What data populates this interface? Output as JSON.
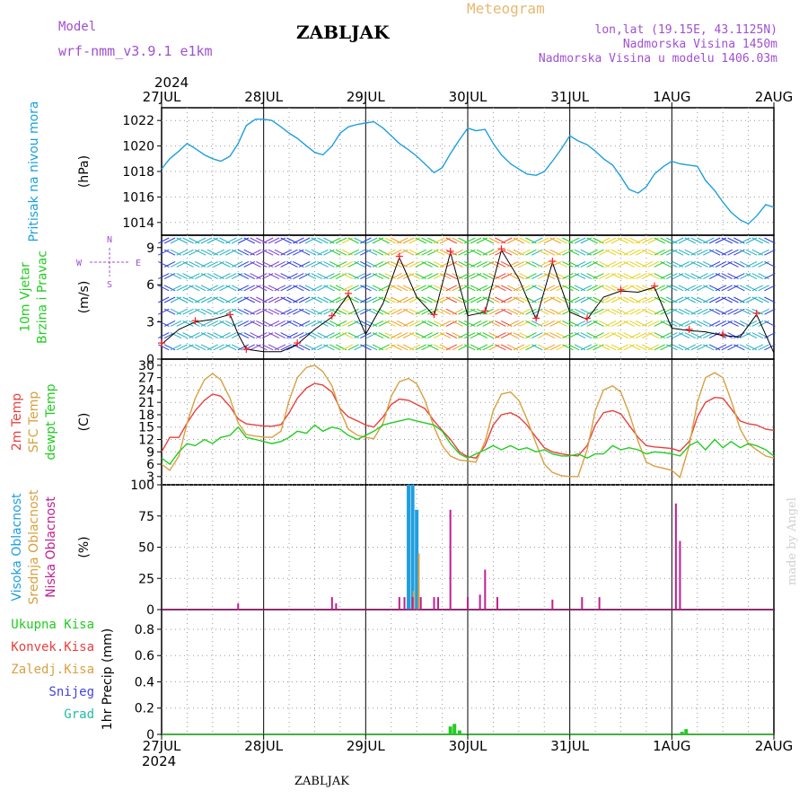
{
  "header": {
    "model_label": "Model",
    "model_name": "wrf-nmm_v3.9.1 e1km",
    "station": "ZABLJAK",
    "product": "Meteogram",
    "coords": "lon,lat (19.15E, 43.1125N)",
    "elevation": "Nadmorska Visina 1450m",
    "model_elevation": "Nadmorska Visina u modelu 1406.03m",
    "year_top": "2024",
    "year_bottom": "2024",
    "footer_station": "ZABLJAK",
    "credit": "made by Angel"
  },
  "colors": {
    "pressure": "#1ea0dc",
    "temp2m": "#e8403c",
    "sfc_temp": "#d8a040",
    "dewpoint": "#22cc22",
    "cloud_high": "#1e9ee0",
    "cloud_mid": "#d8a040",
    "cloud_low": "#c02090",
    "precip_total": "#22cc22",
    "wind_line": "#000000",
    "gust_marker": "#ff2020"
  },
  "x_axis": {
    "day_labels": [
      "27JUL",
      "28JUL",
      "29JUL",
      "30JUL",
      "31JUL",
      "1AUG",
      "2AUG"
    ],
    "range_days": [
      0,
      6
    ]
  },
  "chart_data": [
    {
      "type": "line",
      "panel": "pressure",
      "ylabel_lines": [
        "Pritisak na nivou mora"
      ],
      "unit": "(hPa)",
      "yticks": [
        1014,
        1016,
        1018,
        1020,
        1022
      ],
      "ylim": [
        1013,
        1023
      ],
      "series": [
        {
          "key": "pressure",
          "x": [
            0,
            0.08,
            0.17,
            0.25,
            0.33,
            0.42,
            0.5,
            0.58,
            0.67,
            0.75,
            0.83,
            0.92,
            1.0,
            1.08,
            1.17,
            1.25,
            1.33,
            1.42,
            1.5,
            1.58,
            1.67,
            1.75,
            1.83,
            1.92,
            2.0,
            2.08,
            2.17,
            2.25,
            2.33,
            2.42,
            2.5,
            2.58,
            2.67,
            2.75,
            2.83,
            2.92,
            3.0,
            3.08,
            3.17,
            3.25,
            3.33,
            3.42,
            3.5,
            3.58,
            3.67,
            3.75,
            3.83,
            3.92,
            4.0,
            4.08,
            4.17,
            4.25,
            4.33,
            4.42,
            4.5,
            4.58,
            4.67,
            4.75,
            4.83,
            4.92,
            5.0,
            5.08,
            5.17,
            5.25,
            5.33,
            5.42,
            5.5,
            5.58,
            5.67,
            5.75,
            5.83,
            5.92,
            6.0
          ],
          "y": [
            1018.2,
            1019.0,
            1019.6,
            1020.2,
            1019.8,
            1019.3,
            1019.0,
            1018.8,
            1019.2,
            1020.2,
            1021.6,
            1022.1,
            1022.1,
            1022.0,
            1021.5,
            1021.0,
            1020.6,
            1020.0,
            1019.5,
            1019.3,
            1020.0,
            1021.0,
            1021.5,
            1021.7,
            1021.8,
            1021.9,
            1021.4,
            1020.8,
            1020.2,
            1019.7,
            1019.2,
            1018.6,
            1017.9,
            1018.3,
            1019.4,
            1020.5,
            1021.4,
            1021.2,
            1021.3,
            1020.2,
            1019.3,
            1018.6,
            1018.2,
            1017.8,
            1017.7,
            1018.0,
            1018.8,
            1019.8,
            1020.8,
            1020.4,
            1020.1,
            1019.6,
            1019.0,
            1018.5,
            1017.6,
            1016.6,
            1016.3,
            1016.8,
            1017.8,
            1018.4,
            1018.8,
            1018.6,
            1018.5,
            1018.4,
            1017.3,
            1016.5,
            1015.6,
            1014.8,
            1014.2,
            1013.9,
            1014.5,
            1015.4,
            1015.2
          ]
        }
      ]
    },
    {
      "type": "line",
      "panel": "wind",
      "ylabel_lines": [
        "10m Vjetar",
        "Brzina i Pravac"
      ],
      "unit": "(m/s)",
      "compass": [
        "N",
        "E",
        "S",
        "W"
      ],
      "yticks": [
        0,
        3,
        6,
        9
      ],
      "ylim": [
        0,
        10
      ],
      "series": [
        {
          "key": "wind_line",
          "x": [
            0,
            0.17,
            0.33,
            0.5,
            0.67,
            0.75,
            0.83,
            1.0,
            1.17,
            1.33,
            1.5,
            1.67,
            1.83,
            2.0,
            2.17,
            2.33,
            2.5,
            2.67,
            2.83,
            3.0,
            3.17,
            3.33,
            3.5,
            3.67,
            3.83,
            4.0,
            4.17,
            4.33,
            4.5,
            4.67,
            4.83,
            5.0,
            5.17,
            5.33,
            5.5,
            5.67,
            5.83,
            6.0
          ],
          "y": [
            1.2,
            2.4,
            3.0,
            3.2,
            3.6,
            2.0,
            0.8,
            0.6,
            0.6,
            1.2,
            2.4,
            3.4,
            5.2,
            2.0,
            4.5,
            8.2,
            5.0,
            3.5,
            8.6,
            3.5,
            3.8,
            8.8,
            6.5,
            3.2,
            7.8,
            3.8,
            3.2,
            5.0,
            5.5,
            5.4,
            5.8,
            2.5,
            2.3,
            2.2,
            1.9,
            1.8,
            3.6,
            0.5
          ]
        },
        {
          "key": "gust_marker",
          "x": [
            0,
            0.33,
            0.67,
            0.83,
            1.33,
            1.67,
            1.83,
            2.33,
            2.67,
            2.83,
            3.17,
            3.33,
            3.67,
            3.83,
            4.17,
            4.5,
            4.83,
            5.17,
            5.5,
            5.83
          ],
          "y": [
            1.3,
            3.1,
            3.6,
            0.8,
            1.3,
            3.5,
            5.3,
            8.3,
            3.6,
            8.7,
            3.9,
            8.9,
            3.3,
            7.9,
            3.3,
            5.6,
            5.9,
            2.4,
            2.0,
            3.7
          ]
        }
      ]
    },
    {
      "type": "line",
      "panel": "temperature",
      "ylabel_lines": [
        "2m Temp",
        "SFC Temp",
        "dewpt Temp"
      ],
      "unit": "(C)",
      "yticks": [
        3,
        6,
        9,
        12,
        15,
        18,
        21,
        24,
        27,
        30
      ],
      "ylim": [
        1,
        31.5
      ],
      "series": [
        {
          "key": "temp2m",
          "x": [
            0,
            0.08,
            0.17,
            0.25,
            0.33,
            0.42,
            0.5,
            0.58,
            0.67,
            0.75,
            0.83,
            0.92,
            1.0,
            1.08,
            1.17,
            1.25,
            1.33,
            1.42,
            1.5,
            1.58,
            1.67,
            1.75,
            1.83,
            1.92,
            2.0,
            2.08,
            2.17,
            2.25,
            2.33,
            2.42,
            2.5,
            2.58,
            2.67,
            2.75,
            2.83,
            2.92,
            3.0,
            3.08,
            3.17,
            3.25,
            3.33,
            3.42,
            3.5,
            3.58,
            3.67,
            3.75,
            3.83,
            3.92,
            4.0,
            4.08,
            4.17,
            4.25,
            4.33,
            4.42,
            4.5,
            4.58,
            4.67,
            4.75,
            4.83,
            4.92,
            5.0,
            5.08,
            5.17,
            5.25,
            5.33,
            5.42,
            5.5,
            5.58,
            5.67,
            5.75,
            5.83,
            5.92,
            6.0
          ],
          "y": [
            9,
            12.5,
            12.5,
            16,
            19,
            21.5,
            23,
            22.5,
            20,
            17,
            15.8,
            15.5,
            15.3,
            15.2,
            15.6,
            18.5,
            22,
            24.5,
            25.6,
            25.2,
            23.5,
            19.5,
            17.5,
            16.5,
            15.5,
            15.0,
            17.5,
            20.5,
            21.8,
            21.5,
            20.5,
            19.5,
            16.5,
            14.2,
            12.0,
            9.0,
            7.8,
            7.5,
            10.5,
            15.5,
            18.0,
            18.5,
            17.5,
            15.5,
            12.5,
            10.0,
            9.0,
            8.5,
            8.2,
            8.0,
            10.5,
            15.5,
            18.5,
            19.0,
            18.2,
            15.5,
            12.5,
            10.5,
            10.2,
            10.0,
            9.8,
            9.2,
            11.5,
            17.5,
            21.0,
            22.2,
            22.0,
            19.5,
            16.5,
            15.8,
            15.5,
            14.5,
            14.2
          ]
        },
        {
          "key": "sfc_temp",
          "x": [
            0,
            0.08,
            0.17,
            0.25,
            0.33,
            0.42,
            0.5,
            0.58,
            0.67,
            0.75,
            0.83,
            0.92,
            1.0,
            1.08,
            1.17,
            1.25,
            1.33,
            1.42,
            1.5,
            1.58,
            1.67,
            1.75,
            1.83,
            1.92,
            2.0,
            2.08,
            2.17,
            2.25,
            2.33,
            2.42,
            2.5,
            2.58,
            2.67,
            2.75,
            2.83,
            2.92,
            3.0,
            3.08,
            3.17,
            3.25,
            3.33,
            3.42,
            3.5,
            3.58,
            3.67,
            3.75,
            3.83,
            3.92,
            4.0,
            4.08,
            4.17,
            4.25,
            4.33,
            4.42,
            4.5,
            4.58,
            4.67,
            4.75,
            4.83,
            4.92,
            5.0,
            5.08,
            5.17,
            5.25,
            5.33,
            5.42,
            5.5,
            5.58,
            5.67,
            5.75,
            5.83,
            5.92,
            6.0
          ],
          "y": [
            6,
            4.5,
            8,
            16,
            22,
            26.5,
            28,
            26.5,
            22,
            16,
            13.2,
            12.8,
            12.6,
            12.5,
            14,
            21.5,
            27,
            29.5,
            30.0,
            28.5,
            25.0,
            19.0,
            14.5,
            13.0,
            12.5,
            12.2,
            16.0,
            22.5,
            26.0,
            26.8,
            25.5,
            21.5,
            15.0,
            10.5,
            8.0,
            7.0,
            6.8,
            6.5,
            11.5,
            19.0,
            23.0,
            23.5,
            21.5,
            17.0,
            11.0,
            6.0,
            4.0,
            3.2,
            3.0,
            3.0,
            9.5,
            19.0,
            24.0,
            25.0,
            23.5,
            18.5,
            11.5,
            6.5,
            5.5,
            5.0,
            4.5,
            2.8,
            10.5,
            21.0,
            27.0,
            28.2,
            27.0,
            21.5,
            14.5,
            11.0,
            9.5,
            8.0,
            7.5
          ]
        },
        {
          "key": "dewpoint",
          "x": [
            0,
            0.08,
            0.17,
            0.25,
            0.33,
            0.42,
            0.5,
            0.58,
            0.67,
            0.75,
            0.83,
            0.92,
            1.0,
            1.08,
            1.17,
            1.25,
            1.33,
            1.42,
            1.5,
            1.58,
            1.67,
            1.75,
            1.83,
            1.92,
            2.0,
            2.08,
            2.17,
            2.25,
            2.33,
            2.42,
            2.5,
            2.58,
            2.67,
            2.75,
            2.83,
            2.92,
            3.0,
            3.08,
            3.17,
            3.25,
            3.33,
            3.42,
            3.5,
            3.58,
            3.67,
            3.75,
            3.83,
            3.92,
            4.0,
            4.08,
            4.17,
            4.25,
            4.33,
            4.42,
            4.5,
            4.58,
            4.67,
            4.75,
            4.83,
            4.92,
            5.0,
            5.08,
            5.17,
            5.25,
            5.33,
            5.42,
            5.5,
            5.58,
            5.67,
            5.75,
            5.83,
            5.92,
            6.0
          ],
          "y": [
            7.5,
            6.0,
            9.0,
            11.0,
            10.5,
            12.0,
            11.0,
            12.5,
            13.0,
            15.0,
            12.5,
            12.0,
            11.5,
            11.0,
            11.5,
            12.5,
            14.0,
            13.5,
            15.5,
            14.0,
            15.0,
            14.5,
            13.0,
            12.0,
            13.0,
            14.0,
            15.5,
            16.0,
            16.5,
            17.0,
            16.5,
            16.0,
            15.5,
            14.0,
            11.0,
            8.5,
            7.5,
            8.5,
            9.5,
            10.5,
            9.5,
            10.5,
            9.5,
            10.0,
            9.0,
            9.5,
            8.5,
            8.0,
            8.0,
            8.5,
            7.5,
            8.5,
            8.5,
            10.5,
            9.5,
            10.0,
            9.5,
            8.5,
            9.0,
            8.8,
            8.5,
            8.0,
            10.5,
            11.5,
            9.5,
            12.0,
            10.0,
            11.5,
            10.0,
            11.0,
            10.5,
            9.5,
            8.0
          ]
        }
      ]
    },
    {
      "type": "bar",
      "panel": "clouds",
      "ylabel_lines": [
        "Visoka Oblacnost",
        "Srednja Oblacnost",
        "Niska Oblacnost"
      ],
      "unit": "(%)",
      "yticks": [
        0,
        25,
        50,
        75,
        100
      ],
      "ylim": [
        0,
        100
      ],
      "series": [
        {
          "key": "cloud_high",
          "x": [
            2.42,
            2.46,
            2.5
          ],
          "values": [
            100,
            100,
            80
          ]
        },
        {
          "key": "cloud_mid",
          "x": [
            2.47,
            2.52
          ],
          "values": [
            15,
            45
          ]
        },
        {
          "key": "cloud_low",
          "x": [
            0.75,
            1.67,
            1.71,
            2.33,
            2.38,
            2.46,
            2.54,
            2.67,
            2.71,
            2.83,
            3.0,
            3.12,
            3.17,
            3.29,
            3.83,
            4.12,
            4.29,
            5.04,
            5.08
          ],
          "values": [
            5,
            10,
            5,
            10,
            10,
            10,
            10,
            10,
            10,
            80,
            10,
            12,
            32,
            10,
            8,
            10,
            10,
            85,
            55
          ]
        }
      ]
    },
    {
      "type": "bar",
      "panel": "precip",
      "ylabel_lines": [
        "1hr Precip",
        "(mm)"
      ],
      "legend": [
        {
          "label": "Ukupna Kisa",
          "key": "precip_total"
        },
        {
          "label": "Konvek.Kisa",
          "key": "temp2m"
        },
        {
          "label": "Zaledj.Kisa",
          "key": "sfc_temp"
        },
        {
          "label": "Snijeg",
          "key": "snow"
        },
        {
          "label": "Grad",
          "key": "hail"
        }
      ],
      "legend_colors": {
        "snow": "#4444dd",
        "hail": "#22bbaa"
      },
      "yticks": [
        0,
        0.2,
        0.4,
        0.6,
        0.8
      ],
      "ylim": [
        0,
        0.95
      ],
      "series": [
        {
          "key": "precip_total",
          "x": [
            2.83,
            2.87,
            2.92,
            5.1,
            5.14
          ],
          "values": [
            0.06,
            0.08,
            0.03,
            0.02,
            0.04
          ]
        }
      ]
    }
  ]
}
